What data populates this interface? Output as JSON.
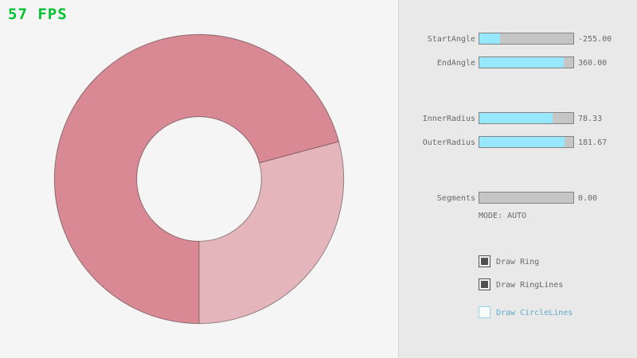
{
  "fps": "57 FPS",
  "ring": {
    "start_angle": -255.0,
    "end_angle": 360.0,
    "inner_radius": 78.33,
    "outer_radius": 181.67,
    "segments": 0.0,
    "overlap_start_deg": 90,
    "overlap_end_deg": 345,
    "color_single": "#e5b5bc",
    "color_double": "#d98994",
    "line_color": "rgba(0,0,0,0.4)"
  },
  "colors": {
    "fps_green": "#00c32f",
    "slider_fill": "#97e8ff",
    "slider_track": "#c6c6c6",
    "panel_bg": "#e9e9e9",
    "canvas_bg": "#f5f5f5",
    "text_gray": "#686868",
    "focus_blue": "#5fa9cf"
  },
  "panel": {
    "sliders": [
      {
        "label": "StartAngle",
        "value": "-255.00",
        "fill_pct": 21.7
      },
      {
        "label": "EndAngle",
        "value": "360.00",
        "fill_pct": 90.0
      },
      {
        "label": "InnerRadius",
        "value": "78.33",
        "fill_pct": 78.3
      },
      {
        "label": "OuterRadius",
        "value": "181.67",
        "fill_pct": 90.8
      },
      {
        "label": "Segments",
        "value": "0.00",
        "fill_pct": 0.0
      }
    ],
    "mode_text": "MODE: AUTO",
    "checkboxes": [
      {
        "label": "Draw Ring",
        "checked": true
      },
      {
        "label": "Draw RingLines",
        "checked": true
      },
      {
        "label": "Draw CircleLines",
        "checked": false
      }
    ]
  }
}
